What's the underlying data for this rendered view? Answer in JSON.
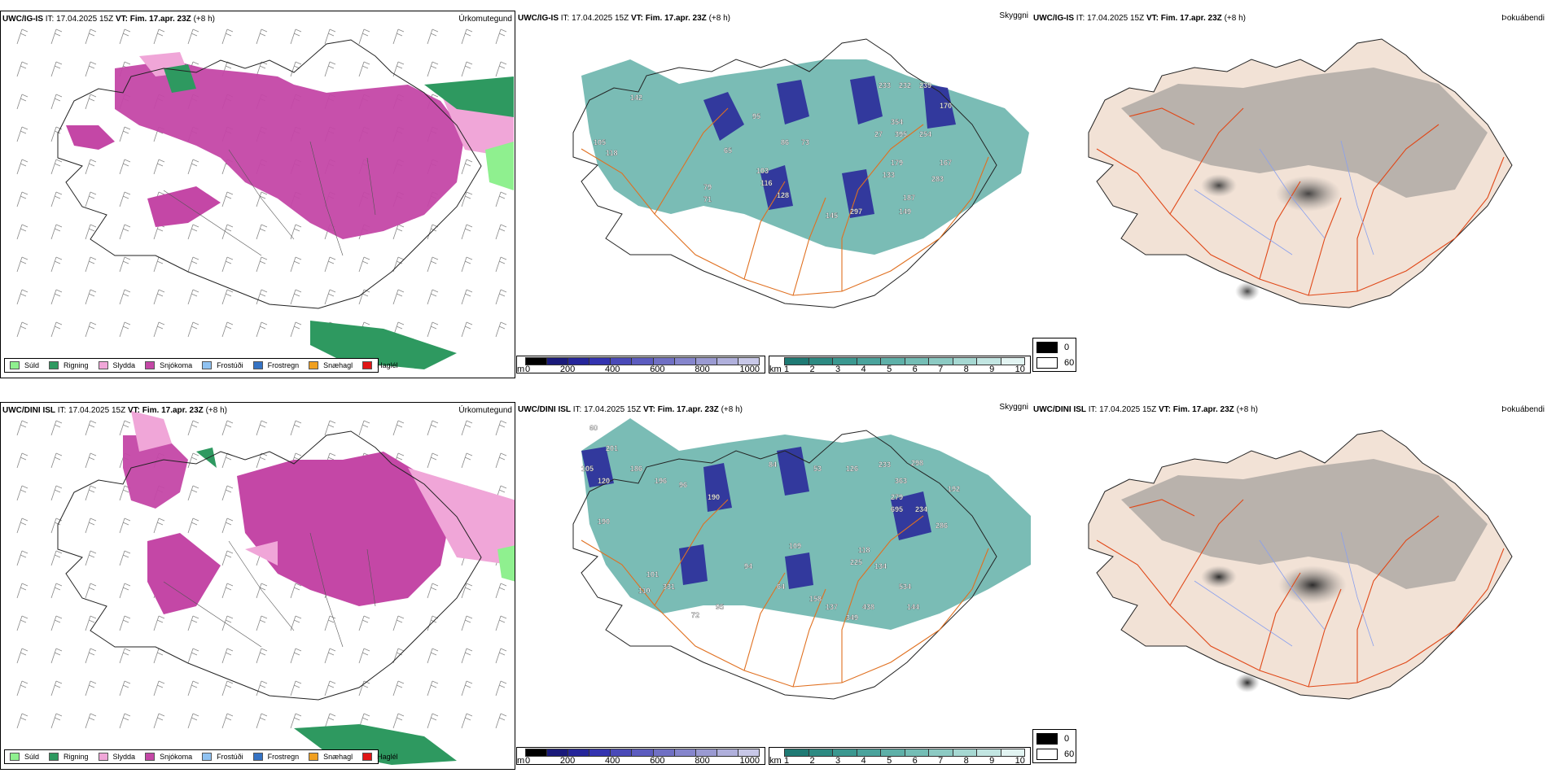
{
  "rows": [
    {
      "model": "UWC/IG-IS",
      "it_label": "IT:",
      "it_value": "17.04.2025 15Z",
      "vt_label": "VT:",
      "vt_value": "Fim. 17.apr. 23Z",
      "lead": "(+8 h)",
      "labels": [
        "142",
        "105",
        "118",
        "65",
        "79",
        "71",
        "86",
        "73",
        "95",
        "103",
        "116",
        "128",
        "145",
        "297",
        "133",
        "179",
        "283",
        "187",
        "233",
        "232",
        "239",
        "354",
        "27",
        "395",
        "254",
        "167",
        "149",
        "170"
      ]
    },
    {
      "model": "UWC/DINI ISL",
      "it_label": "IT:",
      "it_value": "17.04.2025 15Z",
      "vt_label": "VT:",
      "vt_value": "Fim. 17.apr. 23Z",
      "lead": "(+8 h)",
      "labels": [
        "60",
        "201",
        "105",
        "120",
        "186",
        "190",
        "196",
        "96",
        "190",
        "84",
        "53",
        "126",
        "233",
        "298",
        "363",
        "279",
        "695",
        "234",
        "286",
        "192",
        "109",
        "225",
        "134",
        "118",
        "534",
        "144",
        "438",
        "349",
        "137",
        "158",
        "95",
        "72",
        "101",
        "110",
        "331",
        "64",
        "94"
      ]
    }
  ],
  "panel_titles": {
    "precip": "Úrkomutegund",
    "cloud": "Skyggni",
    "fog": "Þokuábendi"
  },
  "precip_legend": [
    {
      "label": "Súld",
      "color": "#8ff08f"
    },
    {
      "label": "Rigning",
      "color": "#2e9960"
    },
    {
      "label": "Slydda",
      "color": "#f0a6d8"
    },
    {
      "label": "Snjókoma",
      "color": "#c447a6"
    },
    {
      "label": "Frostúði",
      "color": "#8fc2f2"
    },
    {
      "label": "Frostregn",
      "color": "#3573c4"
    },
    {
      "label": "Snæhagl",
      "color": "#f0a020"
    },
    {
      "label": "Haglél",
      "color": "#e01515"
    }
  ],
  "colorbar_m": {
    "unit": "m",
    "ticks": [
      "0",
      "200",
      "400",
      "600",
      "800",
      "1000"
    ],
    "colors": [
      "#000000",
      "#1a1a7a",
      "#26269a",
      "#3333b0",
      "#4a4ab8",
      "#5c5cbf",
      "#7070c4",
      "#8585cc",
      "#9a9ad2",
      "#b0b0dc",
      "#c8c8e8"
    ]
  },
  "colorbar_km": {
    "unit": "km",
    "ticks": [
      "1",
      "2",
      "3",
      "4",
      "5",
      "6",
      "7",
      "8",
      "9",
      "10"
    ],
    "colors": [
      "#1f7a74",
      "#2d8a82",
      "#3b9890",
      "#4aa39c",
      "#5eb0a8",
      "#74bdb5",
      "#8ccac3",
      "#a6d8d2",
      "#c2e6e2",
      "#e2f4f2"
    ]
  },
  "fog_legend": {
    "v0": "0",
    "v60": "60"
  },
  "colors": {
    "snow": "#c447a6",
    "sleet": "#f0a6d8",
    "rain": "#2e9960",
    "drizzle": "#8ff08f",
    "cloud_teal": "#4ea59c",
    "cloud_blue": "#2a2a9a",
    "road": "#e07020",
    "land": "#f2e2d6",
    "fog_road": "#e04818"
  }
}
